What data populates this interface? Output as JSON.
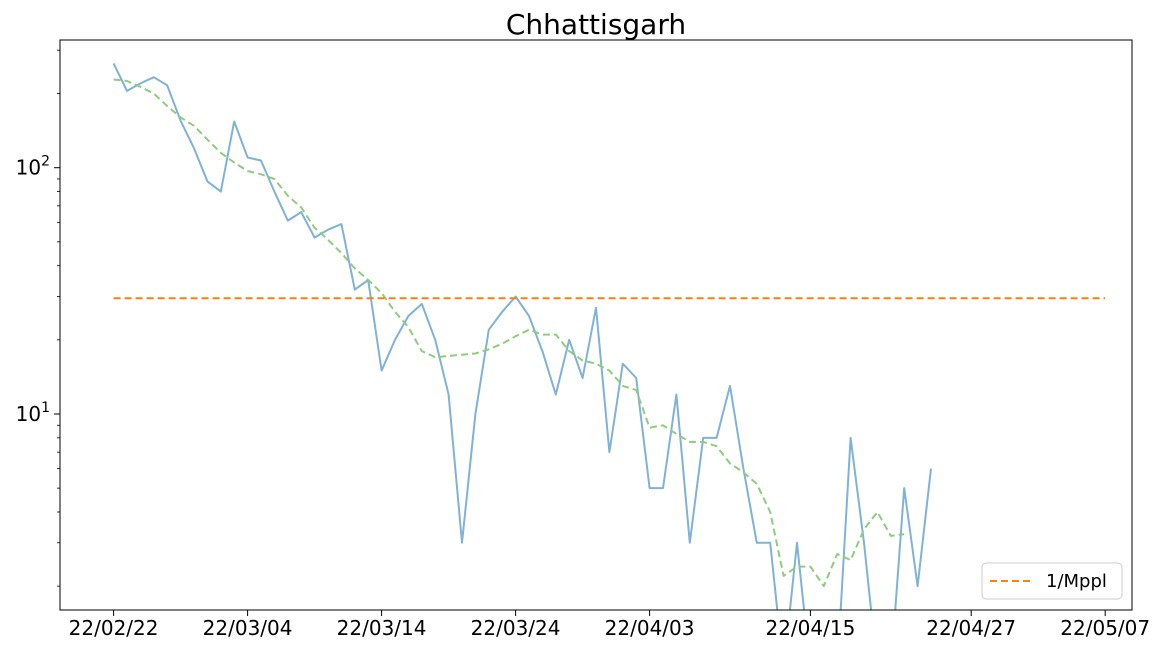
{
  "chart_data": {
    "type": "line",
    "title": "Chhattisgarh",
    "xlabel": "",
    "ylabel": "",
    "y_scale": "log",
    "ylim": [
      1.6,
      330
    ],
    "x_date_range": [
      "2022-02-18",
      "2022-05-09"
    ],
    "x_tick_labels": [
      "22/02/22",
      "22/03/04",
      "22/03/14",
      "22/03/24",
      "22/04/03",
      "22/04/15",
      "22/04/27",
      "22/05/07"
    ],
    "x_tick_dates": [
      "2022-02-22",
      "2022-03-04",
      "2022-03-14",
      "2022-03-24",
      "2022-04-03",
      "2022-04-15",
      "2022-04-27",
      "2022-05-07"
    ],
    "y_tick_labels": [
      {
        "base": "10",
        "exp": "1",
        "value": 10
      },
      {
        "base": "10",
        "exp": "2",
        "value": 100
      }
    ],
    "grid": false,
    "legend": {
      "placement": "lower-right",
      "entries": [
        "1/Mppl"
      ]
    },
    "series": [
      {
        "key": "daily",
        "color": "#7fb2d6",
        "style": "solid",
        "points": [
          [
            "2022-02-22",
            265
          ],
          [
            "2022-02-23",
            205
          ],
          [
            "2022-02-24",
            220
          ],
          [
            "2022-02-25",
            233
          ],
          [
            "2022-02-26",
            216
          ],
          [
            "2022-02-27",
            155
          ],
          [
            "2022-02-28",
            120
          ],
          [
            "2022-03-01",
            88
          ],
          [
            "2022-03-02",
            80
          ],
          [
            "2022-03-03",
            154
          ],
          [
            "2022-03-04",
            110
          ],
          [
            "2022-03-05",
            107
          ],
          [
            "2022-03-06",
            80
          ],
          [
            "2022-03-07",
            61
          ],
          [
            "2022-03-08",
            66
          ],
          [
            "2022-03-09",
            52
          ],
          [
            "2022-03-10",
            56
          ],
          [
            "2022-03-11",
            59
          ],
          [
            "2022-03-12",
            32
          ],
          [
            "2022-03-13",
            35
          ],
          [
            "2022-03-14",
            15
          ],
          [
            "2022-03-15",
            20
          ],
          [
            "2022-03-16",
            25
          ],
          [
            "2022-03-17",
            28
          ],
          [
            "2022-03-18",
            20
          ],
          [
            "2022-03-19",
            12
          ],
          [
            "2022-03-20",
            3
          ],
          [
            "2022-03-21",
            10
          ],
          [
            "2022-03-22",
            22
          ],
          [
            "2022-03-23",
            26
          ],
          [
            "2022-03-24",
            30
          ],
          [
            "2022-03-25",
            25
          ],
          [
            "2022-03-26",
            18
          ],
          [
            "2022-03-27",
            12
          ],
          [
            "2022-03-28",
            20
          ],
          [
            "2022-03-29",
            14
          ],
          [
            "2022-03-30",
            27
          ],
          [
            "2022-03-31",
            7
          ],
          [
            "2022-04-01",
            16
          ],
          [
            "2022-04-02",
            14
          ],
          [
            "2022-04-03",
            5
          ],
          [
            "2022-04-04",
            5
          ],
          [
            "2022-04-05",
            12
          ],
          [
            "2022-04-06",
            3
          ],
          [
            "2022-04-07",
            8
          ],
          [
            "2022-04-08",
            8
          ],
          [
            "2022-04-09",
            13
          ],
          [
            "2022-04-10",
            6
          ],
          [
            "2022-04-11",
            3
          ],
          [
            "2022-04-12",
            3
          ],
          [
            "2022-04-13",
            0
          ],
          [
            "2022-04-14",
            3
          ],
          [
            "2022-04-15",
            0
          ],
          [
            "2022-04-16",
            0
          ],
          [
            "2022-04-17",
            0
          ],
          [
            "2022-04-18",
            8
          ],
          [
            "2022-04-19",
            3
          ],
          [
            "2022-04-20",
            0
          ],
          [
            "2022-04-21",
            0
          ],
          [
            "2022-04-22",
            5
          ],
          [
            "2022-04-23",
            2
          ],
          [
            "2022-04-24",
            6
          ]
        ]
      },
      {
        "key": "moving-average",
        "color": "#8fcc7e",
        "style": "dashed",
        "points": [
          [
            "2022-02-22",
            228
          ],
          [
            "2022-02-23",
            225
          ],
          [
            "2022-02-24",
            213
          ],
          [
            "2022-02-25",
            200
          ],
          [
            "2022-02-26",
            178
          ],
          [
            "2022-02-27",
            160
          ],
          [
            "2022-02-28",
            148
          ],
          [
            "2022-03-01",
            130
          ],
          [
            "2022-03-02",
            115
          ],
          [
            "2022-03-03",
            105
          ],
          [
            "2022-03-04",
            97
          ],
          [
            "2022-03-05",
            94
          ],
          [
            "2022-03-06",
            90
          ],
          [
            "2022-03-07",
            77
          ],
          [
            "2022-03-08",
            69
          ],
          [
            "2022-03-09",
            57
          ],
          [
            "2022-03-10",
            51
          ],
          [
            "2022-03-11",
            45
          ],
          [
            "2022-03-12",
            39
          ],
          [
            "2022-03-13",
            35
          ],
          [
            "2022-03-14",
            31
          ],
          [
            "2022-03-15",
            26
          ],
          [
            "2022-03-16",
            22.5
          ],
          [
            "2022-03-17",
            18
          ],
          [
            "2022-03-18",
            17
          ],
          [
            "2022-03-19",
            17.2
          ],
          [
            "2022-03-20",
            17.4
          ],
          [
            "2022-03-21",
            17.6
          ],
          [
            "2022-03-22",
            18.3
          ],
          [
            "2022-03-23",
            19.3
          ],
          [
            "2022-03-24",
            20.7
          ],
          [
            "2022-03-25",
            22
          ],
          [
            "2022-03-26",
            21
          ],
          [
            "2022-03-27",
            21
          ],
          [
            "2022-03-28",
            18
          ],
          [
            "2022-03-29",
            16.5
          ],
          [
            "2022-03-30",
            16
          ],
          [
            "2022-03-31",
            15
          ],
          [
            "2022-04-01",
            13
          ],
          [
            "2022-04-02",
            12.5
          ],
          [
            "2022-04-03",
            8.8
          ],
          [
            "2022-04-04",
            9
          ],
          [
            "2022-04-05",
            8.3
          ],
          [
            "2022-04-06",
            7.7
          ],
          [
            "2022-04-07",
            7.7
          ],
          [
            "2022-04-08",
            7.4
          ],
          [
            "2022-04-09",
            6.3
          ],
          [
            "2022-04-10",
            5.8
          ],
          [
            "2022-04-11",
            5.2
          ],
          [
            "2022-04-12",
            4
          ],
          [
            "2022-04-13",
            2.2
          ],
          [
            "2022-04-14",
            2.4
          ],
          [
            "2022-04-15",
            2.4
          ],
          [
            "2022-04-16",
            2.0
          ],
          [
            "2022-04-17",
            2.7
          ],
          [
            "2022-04-18",
            2.55
          ],
          [
            "2022-04-19",
            3.4
          ],
          [
            "2022-04-20",
            4
          ],
          [
            "2022-04-21",
            3.2
          ],
          [
            "2022-04-22",
            3.25
          ]
        ]
      },
      {
        "key": "threshold",
        "name": "1/Mppl",
        "color": "#ff7f0e",
        "style": "dashed",
        "points": [
          [
            "2022-02-22",
            29.5
          ],
          [
            "2022-05-07",
            29.5
          ]
        ]
      }
    ]
  }
}
